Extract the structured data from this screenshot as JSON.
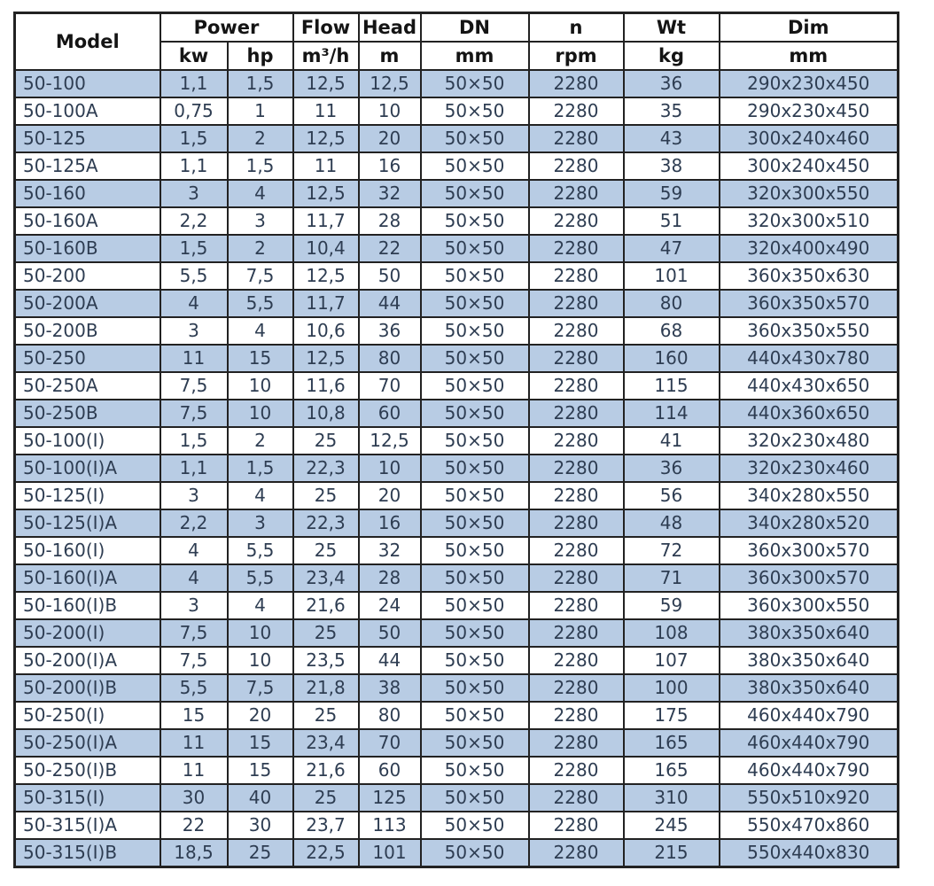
{
  "colors": {
    "row_blue": "#b8cce4",
    "row_white": "#ffffff",
    "border": "#222222",
    "header_text": "#141414",
    "body_text": "#2e3d52"
  },
  "table": {
    "header": {
      "model_label": "Model",
      "power_label": "Power",
      "power_unit_kw": "kw",
      "power_unit_hp": "hp",
      "flow_label": "Flow",
      "flow_unit": "m³/h",
      "head_label": "Head",
      "head_unit": "m",
      "dn_label": "DN",
      "dn_unit": "mm",
      "n_label": "n",
      "n_unit": "rpm",
      "wt_label": "Wt",
      "wt_unit": "kg",
      "dim_label": "Dim",
      "dim_unit": "mm"
    },
    "rows": [
      [
        "50-100",
        "1,1",
        "1,5",
        "12,5",
        "12,5",
        "50×50",
        "2280",
        "36",
        "290x230x450"
      ],
      [
        "50-100A",
        "0,75",
        "1",
        "11",
        "10",
        "50×50",
        "2280",
        "35",
        "290x230x450"
      ],
      [
        "50-125",
        "1,5",
        "2",
        "12,5",
        "20",
        "50×50",
        "2280",
        "43",
        "300x240x460"
      ],
      [
        "50-125A",
        "1,1",
        "1,5",
        "11",
        "16",
        "50×50",
        "2280",
        "38",
        "300x240x450"
      ],
      [
        "50-160",
        "3",
        "4",
        "12,5",
        "32",
        "50×50",
        "2280",
        "59",
        "320x300x550"
      ],
      [
        "50-160A",
        "2,2",
        "3",
        "11,7",
        "28",
        "50×50",
        "2280",
        "51",
        "320x300x510"
      ],
      [
        "50-160B",
        "1,5",
        "2",
        "10,4",
        "22",
        "50×50",
        "2280",
        "47",
        "320x400x490"
      ],
      [
        "50-200",
        "5,5",
        "7,5",
        "12,5",
        "50",
        "50×50",
        "2280",
        "101",
        "360x350x630"
      ],
      [
        "50-200A",
        "4",
        "5,5",
        "11,7",
        "44",
        "50×50",
        "2280",
        "80",
        "360x350x570"
      ],
      [
        "50-200B",
        "3",
        "4",
        "10,6",
        "36",
        "50×50",
        "2280",
        "68",
        "360x350x550"
      ],
      [
        "50-250",
        "11",
        "15",
        "12,5",
        "80",
        "50×50",
        "2280",
        "160",
        "440x430x780"
      ],
      [
        "50-250A",
        "7,5",
        "10",
        "11,6",
        "70",
        "50×50",
        "2280",
        "115",
        "440x430x650"
      ],
      [
        "50-250B",
        "7,5",
        "10",
        "10,8",
        "60",
        "50×50",
        "2280",
        "114",
        "440x360x650"
      ],
      [
        "50-100(I)",
        "1,5",
        "2",
        "25",
        "12,5",
        "50×50",
        "2280",
        "41",
        "320x230x480"
      ],
      [
        "50-100(I)A",
        "1,1",
        "1,5",
        "22,3",
        "10",
        "50×50",
        "2280",
        "36",
        "320x230x460"
      ],
      [
        "50-125(I)",
        "3",
        "4",
        "25",
        "20",
        "50×50",
        "2280",
        "56",
        "340x280x550"
      ],
      [
        "50-125(I)A",
        "2,2",
        "3",
        "22,3",
        "16",
        "50×50",
        "2280",
        "48",
        "340x280x520"
      ],
      [
        "50-160(I)",
        "4",
        "5,5",
        "25",
        "32",
        "50×50",
        "2280",
        "72",
        "360x300x570"
      ],
      [
        "50-160(I)A",
        "4",
        "5,5",
        "23,4",
        "28",
        "50×50",
        "2280",
        "71",
        "360x300x570"
      ],
      [
        "50-160(I)B",
        "3",
        "4",
        "21,6",
        "24",
        "50×50",
        "2280",
        "59",
        "360x300x550"
      ],
      [
        "50-200(I)",
        "7,5",
        "10",
        "25",
        "50",
        "50×50",
        "2280",
        "108",
        "380x350x640"
      ],
      [
        "50-200(I)A",
        "7,5",
        "10",
        "23,5",
        "44",
        "50×50",
        "2280",
        "107",
        "380x350x640"
      ],
      [
        "50-200(I)B",
        "5,5",
        "7,5",
        "21,8",
        "38",
        "50×50",
        "2280",
        "100",
        "380x350x640"
      ],
      [
        "50-250(I)",
        "15",
        "20",
        "25",
        "80",
        "50×50",
        "2280",
        "175",
        "460x440x790"
      ],
      [
        "50-250(I)A",
        "11",
        "15",
        "23,4",
        "70",
        "50×50",
        "2280",
        "165",
        "460x440x790"
      ],
      [
        "50-250(I)B",
        "11",
        "15",
        "21,6",
        "60",
        "50×50",
        "2280",
        "165",
        "460x440x790"
      ],
      [
        "50-315(I)",
        "30",
        "40",
        "25",
        "125",
        "50×50",
        "2280",
        "310",
        "550x510x920"
      ],
      [
        "50-315(I)A",
        "22",
        "30",
        "23,7",
        "113",
        "50×50",
        "2280",
        "245",
        "550x470x860"
      ],
      [
        "50-315(I)B",
        "18,5",
        "25",
        "22,5",
        "101",
        "50×50",
        "2280",
        "215",
        "550x440x830"
      ]
    ]
  }
}
